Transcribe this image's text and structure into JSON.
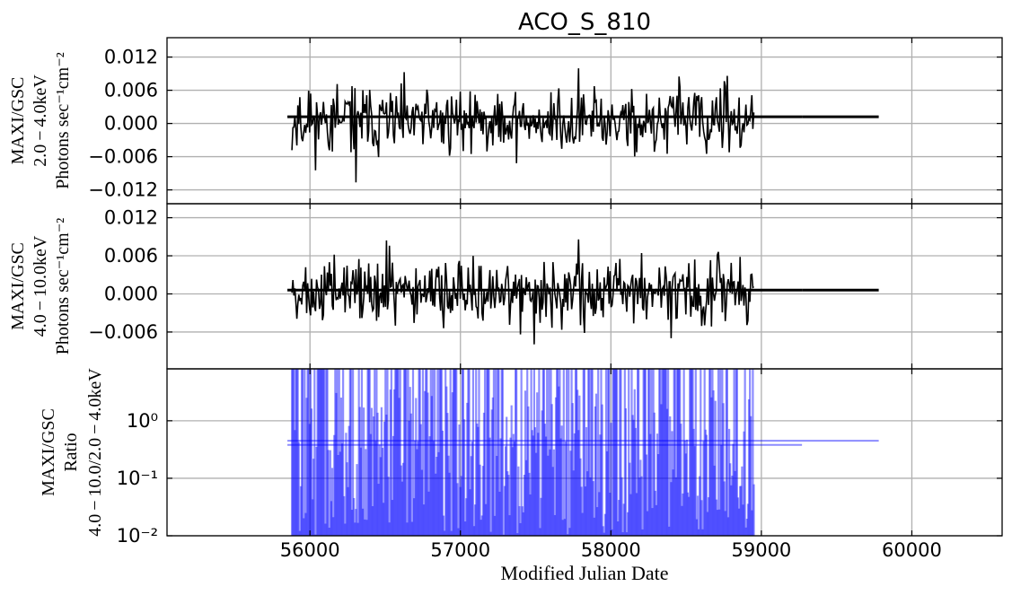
{
  "title": "ACO_S_810",
  "xlabel": "Modified Julian Date",
  "chart_data": [
    {
      "type": "line",
      "panel": "top",
      "ylabel_lines": [
        "MAXI/GSC",
        "2.0 − 4.0keV",
        "Photons sec⁻¹cm⁻²"
      ],
      "xlim": [
        55050,
        60600
      ],
      "ylim": [
        -0.0145,
        0.0155
      ],
      "xticks": [
        56000,
        57000,
        58000,
        59000,
        60000
      ],
      "yticks": [
        0.012,
        0.006,
        0.0,
        -0.006,
        -0.012
      ],
      "ytick_labels": [
        "0.012",
        "0.006",
        "0.000",
        "−0.006",
        "−0.012"
      ],
      "grid": true,
      "series": [
        {
          "color": "#000000",
          "x_range": [
            55880,
            58950
          ],
          "noise_scale": 0.0042,
          "offset": 0.0005,
          "seed": 11
        },
        {
          "color": "#000000",
          "kind": "flat",
          "segments": [
            [
              55850,
              59270,
              0.0012
            ],
            [
              59270,
              59780,
              0.0012
            ]
          ]
        }
      ]
    },
    {
      "type": "line",
      "panel": "middle",
      "ylabel_lines": [
        "MAXI/GSC",
        "4.0 − 10.0keV",
        "Photons sec⁻¹cm⁻²"
      ],
      "xlim": [
        55050,
        60600
      ],
      "ylim": [
        -0.0118,
        0.0142
      ],
      "xticks": [
        56000,
        57000,
        58000,
        59000,
        60000
      ],
      "yticks": [
        0.012,
        0.006,
        0.0,
        -0.006
      ],
      "ytick_labels": [
        "0.012",
        "0.006",
        "0.000",
        "−0.006"
      ],
      "grid": true,
      "series": [
        {
          "color": "#000000",
          "x_range": [
            55880,
            58950
          ],
          "noise_scale": 0.0036,
          "offset": 0.0004,
          "seed": 27
        },
        {
          "color": "#000000",
          "kind": "flat",
          "segments": [
            [
              55850,
              59270,
              0.0006
            ],
            [
              59270,
              59780,
              0.0006
            ]
          ]
        }
      ]
    },
    {
      "type": "line",
      "panel": "bottom",
      "ylabel_lines": [
        "MAXI/GSC",
        "Ratio",
        "4.0 − 10.0/2.0 − 4.0keV"
      ],
      "xlim": [
        55050,
        60600
      ],
      "ylim": [
        0.01,
        8.0
      ],
      "yscale": "log",
      "xticks": [
        56000,
        57000,
        58000,
        59000,
        60000
      ],
      "xtick_labels": [
        "56000",
        "57000",
        "58000",
        "59000",
        "60000"
      ],
      "yticks": [
        1.0,
        0.1,
        0.01
      ],
      "ytick_labels": [
        "10⁰",
        "10⁻¹",
        "10⁻²"
      ],
      "grid": true,
      "series": [
        {
          "color": "#0000ff",
          "x_range": [
            55880,
            58950
          ],
          "seed": 53
        },
        {
          "color": "#0000ff",
          "kind": "flat",
          "segments": [
            [
              55850,
              59270,
              0.38
            ],
            [
              55850,
              59780,
              0.45
            ]
          ]
        }
      ]
    }
  ]
}
